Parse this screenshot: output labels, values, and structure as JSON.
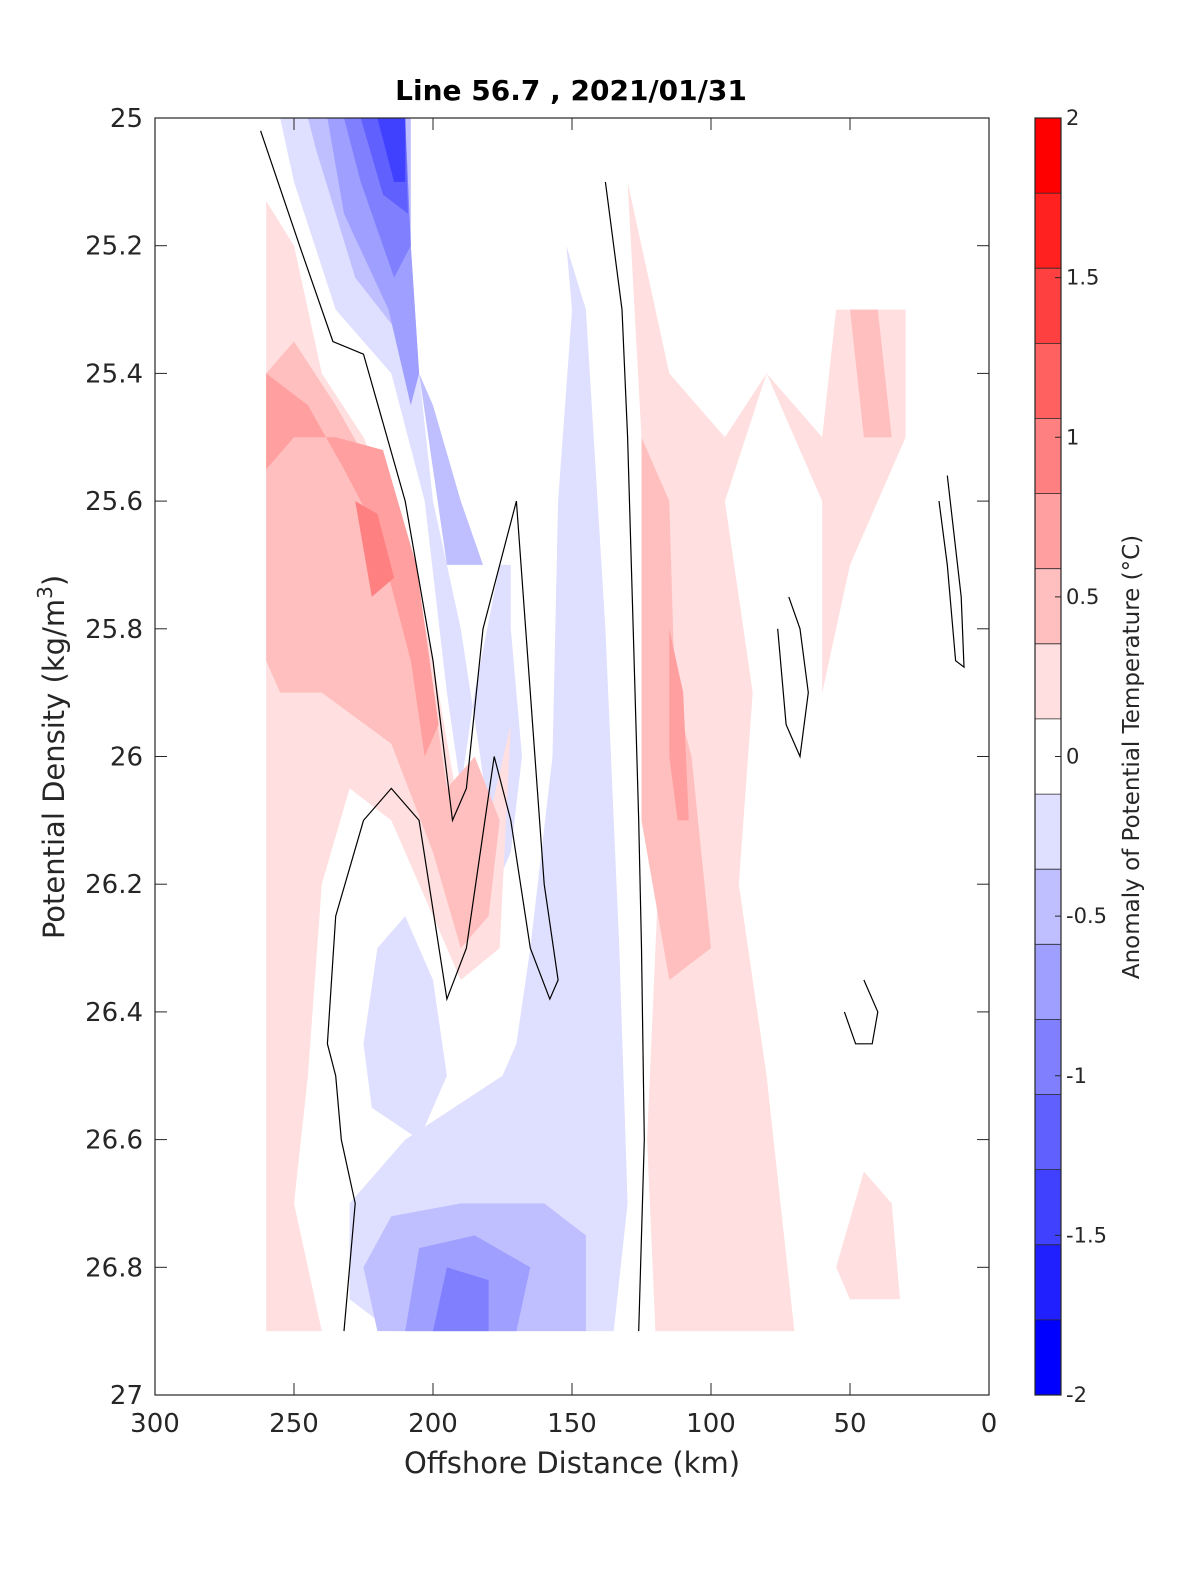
{
  "chart_data": {
    "type": "heatmap",
    "subtype": "filled-contour",
    "title": "Line 56.7 , 2021/01/31",
    "xlabel": "Offshore Distance (km)",
    "ylabel_prefix": "Potential Density (kg/m",
    "ylabel_superscript": "3",
    "ylabel_suffix": ")",
    "x_range": [
      300,
      0
    ],
    "x_reversed": true,
    "y_range": [
      25,
      27
    ],
    "y_reversed": true,
    "x_ticks": [
      300,
      250,
      200,
      150,
      100,
      50,
      0
    ],
    "x_tick_labels": [
      "300",
      "250",
      "200",
      "150",
      "100",
      "50",
      "0"
    ],
    "y_ticks": [
      25,
      25.2,
      25.4,
      25.6,
      25.8,
      26,
      26.2,
      26.4,
      26.6,
      26.8,
      27
    ],
    "y_tick_labels": [
      "25",
      "25.2",
      "25.4",
      "25.6",
      "25.8",
      "26",
      "26.2",
      "26.4",
      "26.6",
      "26.8",
      "27"
    ],
    "grid": false,
    "colorbar": {
      "label": "Anomaly of Potential Temperature (°C)",
      "range": [
        -2,
        2
      ],
      "ticks": [
        -2,
        -1.5,
        -1,
        -0.5,
        0,
        0.5,
        1,
        1.5,
        2
      ],
      "tick_labels": [
        "-2",
        "-1.5",
        "-1",
        "-0.5",
        "0",
        "0.5",
        "1",
        "1.5",
        "2"
      ],
      "levels": [
        -2,
        -1.75,
        -1.5,
        -1.25,
        -1,
        -0.75,
        -0.5,
        -0.25,
        0.25,
        0.5,
        0.75,
        1,
        1.25,
        1.5,
        1.75,
        2
      ],
      "colors": [
        "#0000ff",
        "#2020ff",
        "#4040ff",
        "#6060ff",
        "#8080ff",
        "#9f9fff",
        "#bfbfff",
        "#dfdfff",
        "#ffffff",
        "#ffdfdf",
        "#ffbfbf",
        "#ff9f9f",
        "#ff8080",
        "#ff6060",
        "#ff4040",
        "#ff2020",
        "#ff0000"
      ]
    },
    "data_extent": {
      "x": [
        260,
        20
      ],
      "y": [
        25,
        26.9
      ]
    },
    "regions": [
      {
        "level": -0.25,
        "polygon": [
          [
            255,
            25
          ],
          [
            225,
            25
          ],
          [
            208,
            25
          ],
          [
            208,
            25.2
          ],
          [
            205,
            25.4
          ],
          [
            200,
            25.6
          ],
          [
            190,
            25.8
          ],
          [
            183,
            26.0
          ],
          [
            177,
            26.2
          ],
          [
            172,
            26.15
          ],
          [
            168,
            26.0
          ],
          [
            172,
            25.8
          ],
          [
            172,
            25.7
          ],
          [
            176,
            25.7
          ],
          [
            185,
            25.9
          ],
          [
            190,
            26.05
          ],
          [
            195,
            25.9
          ],
          [
            203,
            25.6
          ],
          [
            215,
            25.4
          ],
          [
            235,
            25.3
          ],
          [
            250,
            25.1
          ]
        ]
      },
      {
        "level": -0.5,
        "polygon": [
          [
            245,
            25
          ],
          [
            225,
            25
          ],
          [
            208,
            25
          ],
          [
            208,
            25.2
          ],
          [
            205,
            25.4
          ],
          [
            200,
            25.55
          ],
          [
            195,
            25.7
          ],
          [
            182,
            25.7
          ],
          [
            190,
            25.6
          ],
          [
            200,
            25.45
          ],
          [
            210,
            25.35
          ],
          [
            228,
            25.25
          ],
          [
            242,
            25.05
          ]
        ]
      },
      {
        "level": -0.75,
        "polygon": [
          [
            238,
            25
          ],
          [
            210,
            25
          ],
          [
            208,
            25.2
          ],
          [
            205,
            25.4
          ],
          [
            208,
            25.45
          ],
          [
            216,
            25.3
          ],
          [
            232,
            25.15
          ]
        ]
      },
      {
        "level": -1.0,
        "polygon": [
          [
            232,
            25
          ],
          [
            210,
            25
          ],
          [
            208,
            25.2
          ],
          [
            214,
            25.25
          ],
          [
            226,
            25.1
          ]
        ]
      },
      {
        "level": -1.25,
        "polygon": [
          [
            226,
            25
          ],
          [
            210,
            25
          ],
          [
            209,
            25.15
          ],
          [
            218,
            25.12
          ]
        ]
      },
      {
        "level": -1.5,
        "polygon": [
          [
            220,
            25
          ],
          [
            210,
            25
          ],
          [
            210,
            25.1
          ],
          [
            214,
            25.1
          ]
        ]
      },
      {
        "level": -0.25,
        "polygon": [
          [
            152,
            25.2
          ],
          [
            145,
            25.3
          ],
          [
            138,
            25.8
          ],
          [
            133,
            26.3
          ],
          [
            130,
            26.7
          ],
          [
            135,
            26.9
          ],
          [
            215,
            26.9
          ],
          [
            230,
            26.85
          ],
          [
            230,
            26.7
          ],
          [
            210,
            26.6
          ],
          [
            175,
            26.5
          ],
          [
            170,
            26.45
          ],
          [
            165,
            26.3
          ],
          [
            157,
            26.0
          ],
          [
            155,
            25.6
          ],
          [
            150,
            25.3
          ]
        ]
      },
      {
        "level": -0.25,
        "polygon": [
          [
            220,
            26.3
          ],
          [
            210,
            26.25
          ],
          [
            200,
            26.35
          ],
          [
            195,
            26.5
          ],
          [
            205,
            26.6
          ],
          [
            222,
            26.55
          ],
          [
            225,
            26.45
          ]
        ]
      },
      {
        "level": -0.5,
        "polygon": [
          [
            220,
            26.9
          ],
          [
            145,
            26.9
          ],
          [
            145,
            26.75
          ],
          [
            160,
            26.7
          ],
          [
            190,
            26.7
          ],
          [
            215,
            26.72
          ],
          [
            225,
            26.8
          ]
        ]
      },
      {
        "level": -0.75,
        "polygon": [
          [
            210,
            26.9
          ],
          [
            170,
            26.9
          ],
          [
            165,
            26.8
          ],
          [
            185,
            26.75
          ],
          [
            205,
            26.77
          ]
        ]
      },
      {
        "level": -1.0,
        "polygon": [
          [
            200,
            26.9
          ],
          [
            180,
            26.9
          ],
          [
            180,
            26.82
          ],
          [
            195,
            26.8
          ]
        ]
      },
      {
        "level": 0.25,
        "polygon": [
          [
            260,
            25.13
          ],
          [
            250,
            25.2
          ],
          [
            240,
            25.4
          ],
          [
            225,
            25.5
          ],
          [
            210,
            25.65
          ],
          [
            200,
            25.85
          ],
          [
            190,
            26.1
          ],
          [
            180,
            26.1
          ],
          [
            172,
            25.95
          ],
          [
            176,
            26.3
          ],
          [
            190,
            26.35
          ],
          [
            200,
            26.25
          ],
          [
            215,
            26.1
          ],
          [
            230,
            26.05
          ],
          [
            240,
            26.2
          ],
          [
            245,
            26.5
          ],
          [
            250,
            26.7
          ],
          [
            240,
            26.9
          ],
          [
            260,
            26.9
          ]
        ]
      },
      {
        "level": 0.5,
        "polygon": [
          [
            260,
            25.4
          ],
          [
            250,
            25.35
          ],
          [
            235,
            25.45
          ],
          [
            222,
            25.55
          ],
          [
            210,
            25.7
          ],
          [
            200,
            25.9
          ],
          [
            195,
            26.05
          ],
          [
            185,
            26.0
          ],
          [
            176,
            26.1
          ],
          [
            180,
            26.25
          ],
          [
            190,
            26.3
          ],
          [
            200,
            26.15
          ],
          [
            215,
            25.98
          ],
          [
            240,
            25.9
          ],
          [
            255,
            25.9
          ],
          [
            260,
            25.85
          ]
        ]
      },
      {
        "level": 0.75,
        "polygon": [
          [
            260,
            25.4
          ],
          [
            245,
            25.45
          ],
          [
            232,
            25.55
          ],
          [
            220,
            25.65
          ],
          [
            208,
            25.85
          ],
          [
            203,
            26.0
          ],
          [
            198,
            25.95
          ],
          [
            206,
            25.7
          ],
          [
            218,
            25.52
          ],
          [
            235,
            25.5
          ],
          [
            250,
            25.5
          ],
          [
            260,
            25.55
          ]
        ]
      },
      {
        "level": 1.0,
        "polygon": [
          [
            228,
            25.6
          ],
          [
            220,
            25.62
          ],
          [
            214,
            25.72
          ],
          [
            222,
            25.75
          ]
        ]
      },
      {
        "level": 0.25,
        "polygon": [
          [
            130,
            25.1
          ],
          [
            125,
            25.5
          ],
          [
            120,
            25.8
          ],
          [
            118,
            26.1
          ],
          [
            123,
            26.6
          ],
          [
            120,
            26.9
          ],
          [
            70,
            26.9
          ],
          [
            75,
            26.7
          ],
          [
            80,
            26.5
          ],
          [
            90,
            26.2
          ],
          [
            85,
            25.9
          ],
          [
            95,
            25.6
          ],
          [
            80,
            25.4
          ],
          [
            70,
            25.5
          ],
          [
            60,
            25.6
          ],
          [
            60,
            25.9
          ],
          [
            50,
            25.7
          ],
          [
            40,
            25.6
          ],
          [
            30,
            25.5
          ],
          [
            30,
            25.3
          ],
          [
            50,
            25.3
          ],
          [
            55,
            25.3
          ],
          [
            60,
            25.5
          ],
          [
            80,
            25.4
          ],
          [
            95,
            25.5
          ],
          [
            115,
            25.4
          ],
          [
            125,
            25.2
          ]
        ]
      },
      {
        "level": 0.5,
        "polygon": [
          [
            125,
            25.5
          ],
          [
            115,
            25.6
          ],
          [
            113,
            25.9
          ],
          [
            107,
            26.0
          ],
          [
            100,
            26.3
          ],
          [
            115,
            26.35
          ],
          [
            125,
            26.1
          ],
          [
            125,
            25.8
          ]
        ]
      },
      {
        "level": 0.75,
        "polygon": [
          [
            115,
            25.8
          ],
          [
            110,
            25.9
          ],
          [
            108,
            26.1
          ],
          [
            112,
            26.1
          ],
          [
            115,
            26.0
          ]
        ]
      },
      {
        "level": 0.5,
        "polygon": [
          [
            50,
            25.3
          ],
          [
            40,
            25.3
          ],
          [
            35,
            25.5
          ],
          [
            45,
            25.5
          ]
        ]
      },
      {
        "level": 0.25,
        "polygon": [
          [
            45,
            26.65
          ],
          [
            35,
            26.7
          ],
          [
            32,
            26.85
          ],
          [
            50,
            26.85
          ],
          [
            55,
            26.8
          ]
        ]
      }
    ],
    "zero_contours": [
      [
        [
          262,
          25.02
        ],
        [
          248,
          25.2
        ],
        [
          236,
          25.35
        ],
        [
          225,
          25.37
        ],
        [
          210,
          25.6
        ],
        [
          200,
          25.85
        ],
        [
          193,
          26.1
        ],
        [
          188,
          26.05
        ],
        [
          182,
          25.8
        ],
        [
          170,
          25.6
        ],
        [
          165,
          25.9
        ],
        [
          160,
          26.2
        ],
        [
          155,
          26.35
        ],
        [
          158,
          26.38
        ],
        [
          165,
          26.3
        ],
        [
          172,
          26.1
        ],
        [
          178,
          26.0
        ],
        [
          188,
          26.3
        ],
        [
          195,
          26.38
        ],
        [
          205,
          26.1
        ],
        [
          215,
          26.05
        ],
        [
          225,
          26.1
        ],
        [
          235,
          26.25
        ],
        [
          238,
          26.45
        ],
        [
          235,
          26.5
        ],
        [
          233,
          26.6
        ],
        [
          228,
          26.7
        ],
        [
          232,
          26.9
        ]
      ],
      [
        [
          138,
          25.1
        ],
        [
          132,
          25.3
        ],
        [
          130,
          25.5
        ],
        [
          128,
          25.8
        ],
        [
          126,
          26.1
        ],
        [
          125,
          26.3
        ],
        [
          124,
          26.6
        ],
        [
          126,
          26.9
        ]
      ],
      [
        [
          15,
          25.56
        ],
        [
          10,
          25.75
        ],
        [
          9,
          25.86
        ],
        [
          12,
          25.85
        ],
        [
          15,
          25.7
        ],
        [
          18,
          25.6
        ]
      ],
      [
        [
          72,
          25.75
        ],
        [
          68,
          25.8
        ],
        [
          65,
          25.9
        ],
        [
          68,
          26.0
        ],
        [
          73,
          25.95
        ],
        [
          76,
          25.8
        ]
      ],
      [
        [
          45,
          26.35
        ],
        [
          40,
          26.4
        ],
        [
          42,
          26.45
        ],
        [
          48,
          26.45
        ],
        [
          52,
          26.4
        ]
      ]
    ]
  }
}
